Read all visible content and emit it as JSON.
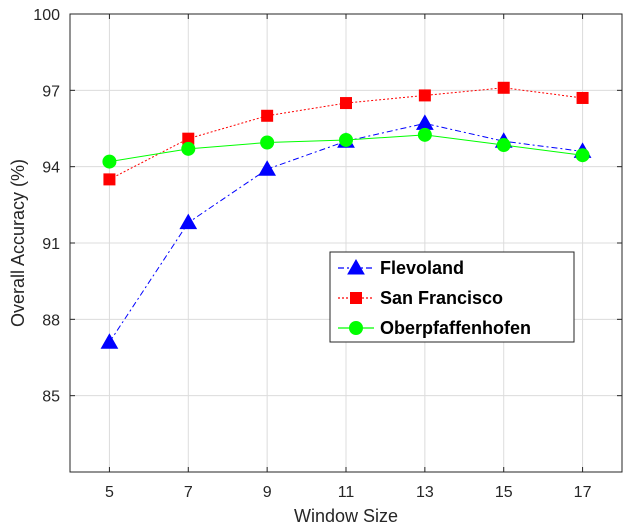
{
  "chart_data": {
    "type": "line",
    "title": "",
    "xlabel": "Window Size",
    "ylabel": "Overall Accuracy (%)",
    "x": [
      5,
      7,
      9,
      11,
      13,
      15,
      17
    ],
    "xlim": [
      4,
      18
    ],
    "ylim": [
      82,
      100
    ],
    "xticks": [
      "5",
      "7",
      "9",
      "11",
      "13",
      "15",
      "17"
    ],
    "yticks": [
      "85",
      "88",
      "91",
      "94",
      "97",
      "100"
    ],
    "grid": true,
    "legend_position": "center-right",
    "series": [
      {
        "name": "Flevoland",
        "values": [
          87.1,
          91.8,
          93.9,
          95.0,
          95.7,
          95.0,
          94.6
        ],
        "color": "#0000ff",
        "line_style": "dash-dot",
        "marker": "triangle"
      },
      {
        "name": "San Francisco",
        "values": [
          93.5,
          95.1,
          96.0,
          96.5,
          96.8,
          97.1,
          96.7
        ],
        "color": "#ff0000",
        "line_style": "dotted",
        "marker": "square"
      },
      {
        "name": "Oberpfaffenhofen",
        "values": [
          94.2,
          94.7,
          94.95,
          95.05,
          95.25,
          94.85,
          94.45
        ],
        "color": "#00ff00",
        "line_style": "solid",
        "marker": "circle"
      }
    ]
  }
}
